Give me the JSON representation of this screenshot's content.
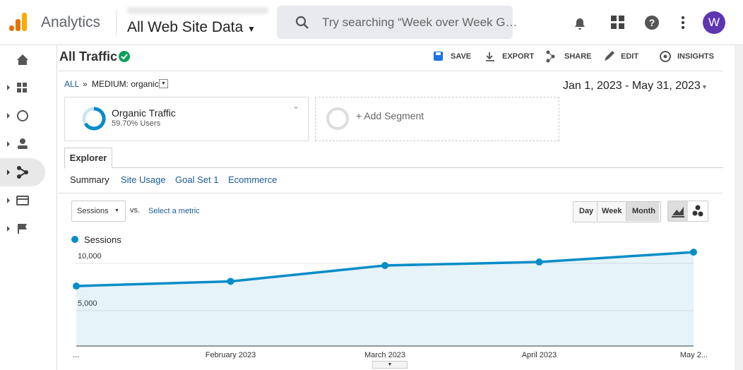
{
  "header": {
    "product": "Analytics",
    "property": "All Web Site Data",
    "search_placeholder": "Try searching “Week over Week G…",
    "avatar": "W"
  },
  "report": {
    "title": "All Traffic",
    "actions": [
      "SAVE",
      "EXPORT",
      "SHARE",
      "EDIT",
      "INSIGHTS"
    ],
    "breadcrumb": [
      "ALL",
      "»",
      "MEDIUM: organic"
    ],
    "date_range": "Jan 1, 2023 - May 31, 2023",
    "segments": [
      {
        "name": "Organic Traffic",
        "detail": "59.70% Users"
      },
      {
        "name": "+ Add Segment"
      }
    ],
    "tab": "Explorer",
    "subtabs": [
      "Summary",
      "Site Usage",
      "Goal Set 1",
      "Ecommerce"
    ],
    "metric": "Sessions",
    "vs": "vs.",
    "select_metric": "Select a metric",
    "periods": [
      "Day",
      "Week",
      "Month"
    ]
  },
  "chart_data": {
    "type": "line",
    "categories": [
      "...",
      "February 2023",
      "March 2023",
      "April 2023",
      "May 2..."
    ],
    "series": [
      {
        "name": "Sessions",
        "color": "#058dc7",
        "values": [
          7600,
          8100,
          9780,
          10150,
          11190
        ]
      }
    ],
    "ylim": [
      1250,
      11350
    ],
    "yticks": [
      {
        "value": 5000,
        "label": "5,000"
      },
      {
        "value": 10000,
        "label": "10,000"
      }
    ],
    "grid": true
  }
}
